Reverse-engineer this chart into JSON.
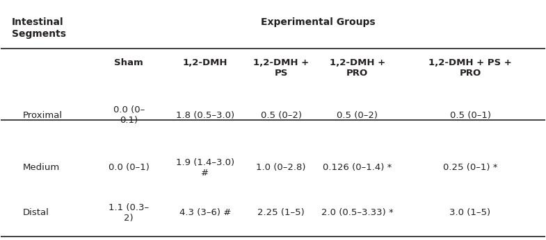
{
  "title_left": "Intestinal\nSegments",
  "title_center": "Experimental Groups",
  "col_headers": [
    "Sham",
    "1,2-DMH",
    "1,2-DMH +\nPS",
    "1,2-DMH +\nPRO",
    "1,2-DMH + PS +\nPRO"
  ],
  "row_labels": [
    "Proximal",
    "Medium",
    "Distal"
  ],
  "cell_data": [
    [
      "0.0 (0–\n0.1)",
      "1.8 (0.5–3.0)",
      "0.5 (0–2)",
      "0.5 (0–2)",
      "0.5 (0–1)"
    ],
    [
      "0.0 (0–1)",
      "1.9 (1.4–3.0)\n#",
      "1.0 (0–2.8)",
      "0.126 (0–1.4) *",
      "0.25 (0–1) *"
    ],
    [
      "1.1 (0.3–\n2)",
      "4.3 (3–6) #",
      "2.25 (1–5)",
      "2.0 (0.5–3.33) *",
      "3.0 (1–5)"
    ]
  ],
  "bg_color": "#ffffff",
  "text_color": "#231f20",
  "header_line_color": "#231f20",
  "font_size": 9.5,
  "header_font_size": 9.5
}
